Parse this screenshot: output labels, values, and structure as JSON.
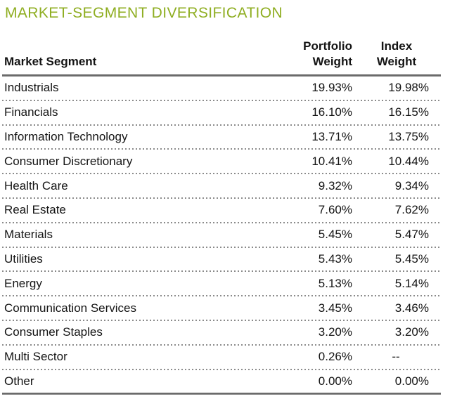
{
  "title": "MARKET-SEGMENT DIVERSIFICATION",
  "colors": {
    "title_green": "#8FAE22",
    "text": "#141414",
    "rule_dark": "#454545",
    "dotted_separator": "#8b8b8b",
    "background": "#ffffff"
  },
  "table": {
    "header": {
      "segment": "Market Segment",
      "portfolio": "Portfolio\nWeight",
      "index": "Index\nWeight"
    },
    "rows": [
      {
        "segment": "Industrials",
        "portfolio": "19.93%",
        "index": "19.98%"
      },
      {
        "segment": "Financials",
        "portfolio": "16.10%",
        "index": "16.15%"
      },
      {
        "segment": "Information Technology",
        "portfolio": "13.71%",
        "index": "13.75%"
      },
      {
        "segment": "Consumer Discretionary",
        "portfolio": "10.41%",
        "index": "10.44%"
      },
      {
        "segment": "Health Care",
        "portfolio": "9.32%",
        "index": "9.34%"
      },
      {
        "segment": "Real Estate",
        "portfolio": "7.60%",
        "index": "7.62%"
      },
      {
        "segment": "Materials",
        "portfolio": "5.45%",
        "index": "5.47%"
      },
      {
        "segment": "Utilities",
        "portfolio": "5.43%",
        "index": "5.45%"
      },
      {
        "segment": "Energy",
        "portfolio": "5.13%",
        "index": "5.14%"
      },
      {
        "segment": "Communication Services",
        "portfolio": "3.45%",
        "index": "3.46%"
      },
      {
        "segment": "Consumer Staples",
        "portfolio": "3.20%",
        "index": "3.20%"
      },
      {
        "segment": "Multi Sector",
        "portfolio": "0.26%",
        "index": "--"
      },
      {
        "segment": "Other",
        "portfolio": "0.00%",
        "index": "0.00%"
      }
    ]
  },
  "chart_data": {
    "type": "table",
    "title": "MARKET-SEGMENT DIVERSIFICATION",
    "columns": [
      "Market Segment",
      "Portfolio Weight",
      "Index Weight"
    ],
    "categories": [
      "Industrials",
      "Financials",
      "Information Technology",
      "Consumer Discretionary",
      "Health Care",
      "Real Estate",
      "Materials",
      "Utilities",
      "Energy",
      "Communication Services",
      "Consumer Staples",
      "Multi Sector",
      "Other"
    ],
    "series": [
      {
        "name": "Portfolio Weight",
        "unit": "%",
        "values": [
          19.93,
          16.1,
          13.71,
          10.41,
          9.32,
          7.6,
          5.45,
          5.43,
          5.13,
          3.45,
          3.2,
          0.26,
          0.0
        ]
      },
      {
        "name": "Index Weight",
        "unit": "%",
        "values": [
          19.98,
          16.15,
          13.75,
          10.44,
          9.34,
          7.62,
          5.47,
          5.45,
          5.14,
          3.46,
          3.2,
          null,
          0.0
        ]
      }
    ],
    "notes": "-- shown for Multi Sector Index Weight"
  }
}
